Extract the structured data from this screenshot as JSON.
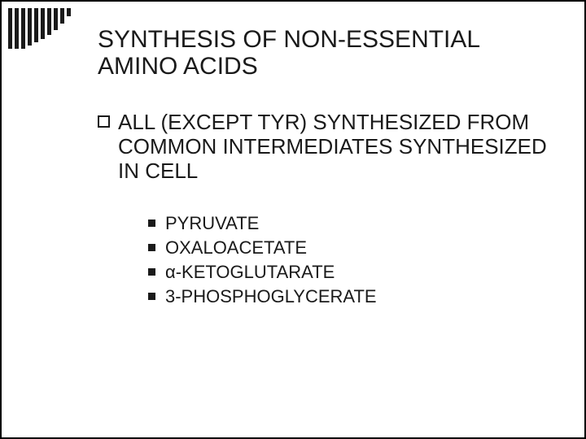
{
  "slide": {
    "background_color": "#ffffff",
    "border_color": "#000000",
    "decoration": {
      "bar_color": "#1a1a1a",
      "bar_count": 10
    },
    "title": {
      "text": "SYNTHESIS OF NON-ESSENTIAL AMINO ACIDS",
      "fontsize": 30,
      "color": "#1a1a1a"
    },
    "level1": {
      "bullet_style": "hollow-square",
      "bullet_border_color": "#1a1a1a",
      "fontsize": 26,
      "color": "#1a1a1a",
      "items": [
        {
          "text": "ALL (EXCEPT TYR) SYNTHESIZED FROM COMMON INTERMEDIATES SYNTHESIZED IN CELL"
        }
      ]
    },
    "level2": {
      "bullet_style": "filled-square",
      "bullet_color": "#1a1a1a",
      "fontsize": 22,
      "color": "#1a1a1a",
      "items": [
        {
          "text": "PYRUVATE"
        },
        {
          "text": "OXALOACETATE"
        },
        {
          "text": "α-KETOGLUTARATE"
        },
        {
          "text": "3-PHOSPHOGLYCERATE"
        }
      ]
    }
  }
}
